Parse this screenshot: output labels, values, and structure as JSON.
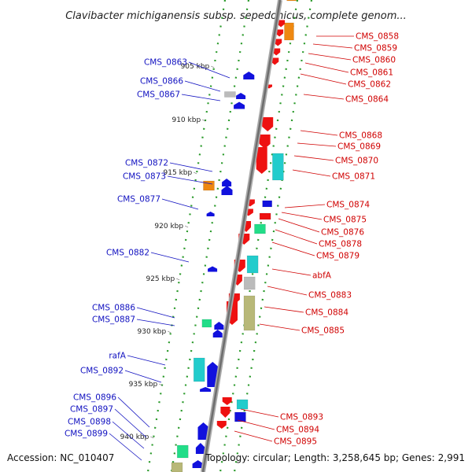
{
  "title": "Clavibacter michiganensis subsp. sepedonicus, complete genom...",
  "footer": {
    "accession": "Accession: NC_010407",
    "topology": "Topology: circular; Length: 3,258,645 bp; Genes: 2,991"
  },
  "colors": {
    "forward": "#ee1111",
    "reverse": "#1111dd",
    "backbone": "#888888",
    "tick": "#2a9a2a",
    "orange": "#ee8811",
    "cyan": "#22cccc",
    "gray": "#bbbbbb",
    "green": "#22dd88",
    "olive": "#b8b878"
  },
  "scale_labels": [
    "905 kbp",
    "910 kbp",
    "915 kbp",
    "920 kbp",
    "925 kbp",
    "930 kbp",
    "935 kbp",
    "940 kbp"
  ],
  "left_genes": [
    "CMS_0863",
    "CMS_0866",
    "CMS_0867",
    "CMS_0872",
    "CMS_0873",
    "CMS_0877",
    "CMS_0882",
    "CMS_0886",
    "CMS_0887",
    "rafA",
    "CMS_0892",
    "CMS_0896",
    "CMS_0897",
    "CMS_0898",
    "CMS_0899"
  ],
  "right_genes": [
    "CMS_0858",
    "CMS_0859",
    "CMS_0860",
    "CMS_0861",
    "CMS_0862",
    "CMS_0864",
    "CMS_0868",
    "CMS_0869",
    "CMS_0870",
    "CMS_0871",
    "CMS_0874",
    "CMS_0875",
    "CMS_0876",
    "CMS_0878",
    "CMS_0879",
    "abfA",
    "CMS_0883",
    "CMS_0884",
    "CMS_0885",
    "CMS_0893",
    "CMS_0894",
    "CMS_0895"
  ]
}
